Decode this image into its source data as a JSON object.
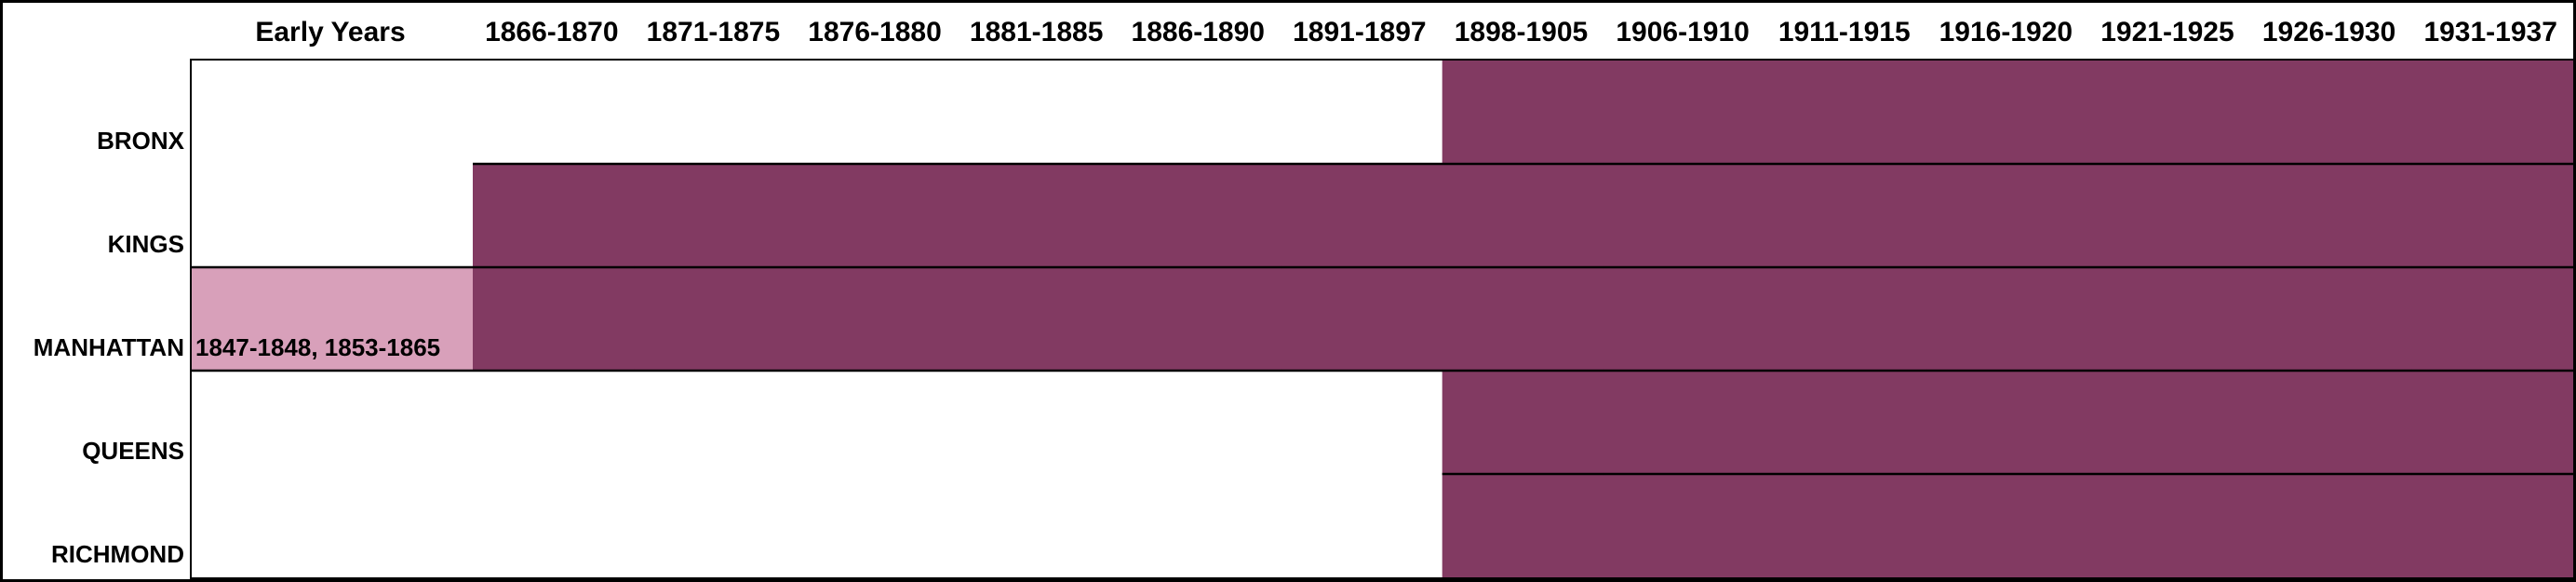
{
  "chart_data": {
    "type": "heatmap",
    "columns": [
      "Early Years",
      "1866-1870",
      "1871-1875",
      "1876-1880",
      "1881-1885",
      "1886-1890",
      "1891-1897",
      "1898-1905",
      "1906-1910",
      "1911-1915",
      "1916-1920",
      "1921-1925",
      "1926-1930",
      "1931-1937"
    ],
    "rows": [
      "BRONX",
      "KINGS",
      "MANHATTAN",
      "QUEENS",
      "RICHMOND"
    ],
    "colors": {
      "full": "#823a62",
      "partial": "#d8a0ba",
      "empty": "#ffffff",
      "line": "#000000"
    },
    "cells": [
      [
        0,
        0,
        0,
        0,
        0,
        0,
        0,
        2,
        2,
        2,
        2,
        2,
        2,
        2
      ],
      [
        0,
        2,
        2,
        2,
        2,
        2,
        2,
        2,
        2,
        2,
        2,
        2,
        2,
        2
      ],
      [
        1,
        2,
        2,
        2,
        2,
        2,
        2,
        2,
        2,
        2,
        2,
        2,
        2,
        2
      ],
      [
        0,
        0,
        0,
        0,
        0,
        0,
        0,
        2,
        2,
        2,
        2,
        2,
        2,
        2
      ],
      [
        0,
        0,
        0,
        0,
        0,
        0,
        0,
        2,
        2,
        2,
        2,
        2,
        2,
        2
      ]
    ],
    "annotations": [
      {
        "row": "MANHATTAN",
        "column": "Early Years",
        "text": "1847-1848, 1853-1865"
      }
    ]
  }
}
